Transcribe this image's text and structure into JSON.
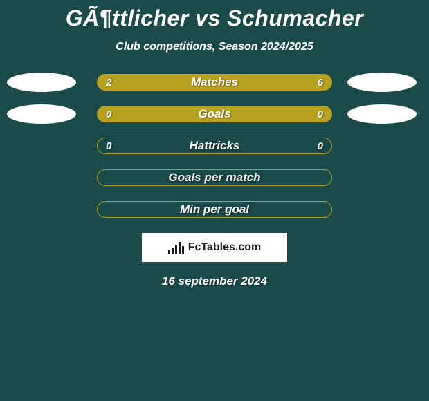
{
  "title": "GÃ¶ttlicher vs Schumacher",
  "subtitle": "Club competitions, Season 2024/2025",
  "background_color": "#1a4a4a",
  "bar_border_color": "#b8a020",
  "bar_fill_color": "#b8a020",
  "ellipse_color": "#ffffff",
  "text_color": "#ffffff",
  "rows": [
    {
      "label": "Matches",
      "left_value": "2",
      "right_value": "6",
      "left_fill_pct": 22,
      "right_fill_pct": 0,
      "bg_fill": true,
      "show_left_ellipse": true,
      "show_right_ellipse": true
    },
    {
      "label": "Goals",
      "left_value": "0",
      "right_value": "0",
      "left_fill_pct": 0,
      "right_fill_pct": 0,
      "bg_fill": true,
      "show_left_ellipse": true,
      "show_right_ellipse": true
    },
    {
      "label": "Hattricks",
      "left_value": "0",
      "right_value": "0",
      "left_fill_pct": 0,
      "right_fill_pct": 0,
      "bg_fill": false,
      "show_left_ellipse": false,
      "show_right_ellipse": false
    },
    {
      "label": "Goals per match",
      "left_value": "",
      "right_value": "",
      "left_fill_pct": 0,
      "right_fill_pct": 0,
      "bg_fill": false,
      "show_left_ellipse": false,
      "show_right_ellipse": false
    },
    {
      "label": "Min per goal",
      "left_value": "",
      "right_value": "",
      "left_fill_pct": 0,
      "right_fill_pct": 0,
      "bg_fill": false,
      "show_left_ellipse": false,
      "show_right_ellipse": false
    }
  ],
  "badge_text": "FcTables.com",
  "date": "16 september 2024"
}
